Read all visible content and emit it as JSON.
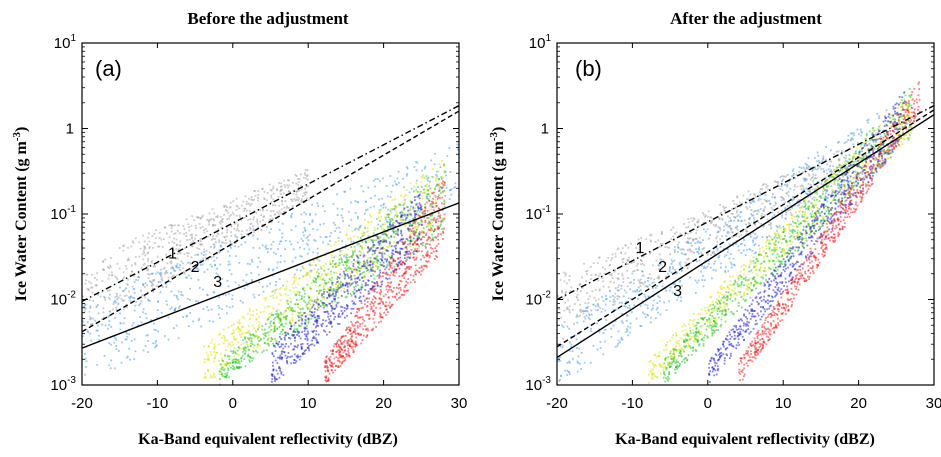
{
  "chart_data": [
    {
      "type": "scatter",
      "panel_label": "(a)",
      "title": "Before the adjustment",
      "xlabel": "Ka-Band equivalent reflectivity (dBZ)",
      "ylabel_main": "Ice Water Content (g m",
      "ylabel_sup": "-3",
      "ylabel_end": ")",
      "xlim": [
        -20,
        30
      ],
      "ylim": [
        0.001,
        10
      ],
      "yscale": "log",
      "xticks": [
        "-20",
        "-10",
        "0",
        "10",
        "20",
        "30"
      ],
      "yticks": [
        {
          "base": "10",
          "exp": "1",
          "value": 10
        },
        {
          "base": "1",
          "exp": "",
          "value": 1
        },
        {
          "base": "10",
          "exp": "-1",
          "value": 0.1
        },
        {
          "base": "10",
          "exp": "-2",
          "value": 0.01
        },
        {
          "base": "10",
          "exp": "-3",
          "value": 0.001
        }
      ],
      "lines": [
        {
          "label": "1",
          "style": "dashdot",
          "x": [
            -20,
            30
          ],
          "y": [
            0.0095,
            1.85
          ],
          "label_at": [
            -8,
            0.03
          ]
        },
        {
          "label": "2",
          "style": "dashed",
          "x": [
            -20,
            30
          ],
          "y": [
            0.0042,
            1.6
          ],
          "label_at": [
            -5,
            0.021
          ]
        },
        {
          "label": "3",
          "style": "solid",
          "x": [
            -20,
            30
          ],
          "y": [
            0.0027,
            0.135
          ],
          "label_at": [
            -2,
            0.014
          ]
        }
      ],
      "scatter_groups": [
        {
          "color": "#a0a0a0",
          "x_range": [
            -20,
            10
          ],
          "y_at_x_min": [
            0.004,
            0.03
          ],
          "y_at_x_max": [
            0.15,
            0.35
          ]
        },
        {
          "color": "#4a9ce8",
          "x_range": [
            -20,
            30
          ],
          "y_at_x_min": [
            0.001,
            0.01
          ],
          "y_at_x_max": [
            0.15,
            0.7
          ]
        },
        {
          "color": "#d8e000",
          "x_range": [
            -4,
            28
          ],
          "y_at_x_min": [
            0.001,
            0.003
          ],
          "y_at_x_max": [
            0.08,
            0.5
          ]
        },
        {
          "color": "#20c020",
          "x_range": [
            -2,
            28
          ],
          "y_at_x_min": [
            0.001,
            0.002
          ],
          "y_at_x_max": [
            0.06,
            0.4
          ]
        },
        {
          "color": "#2020c8",
          "x_range": [
            5,
            25
          ],
          "y_at_x_min": [
            0.001,
            0.003
          ],
          "y_at_x_max": [
            0.04,
            0.2
          ]
        },
        {
          "color": "#e82020",
          "x_range": [
            12,
            28
          ],
          "y_at_x_min": [
            0.001,
            0.002
          ],
          "y_at_x_max": [
            0.04,
            0.3
          ]
        }
      ]
    },
    {
      "type": "scatter",
      "panel_label": "(b)",
      "title": "After the adjustment",
      "xlabel": "Ka-Band equivalent reflectivity (dBZ)",
      "ylabel_main": "Ice Water Content (g m",
      "ylabel_sup": "-3",
      "ylabel_end": ")",
      "xlim": [
        -20,
        30
      ],
      "ylim": [
        0.001,
        10
      ],
      "yscale": "log",
      "xticks": [
        "-20",
        "-10",
        "0",
        "10",
        "20",
        "30"
      ],
      "yticks": [
        {
          "base": "10",
          "exp": "1",
          "value": 10
        },
        {
          "base": "1",
          "exp": "",
          "value": 1
        },
        {
          "base": "10",
          "exp": "-1",
          "value": 0.1
        },
        {
          "base": "10",
          "exp": "-2",
          "value": 0.01
        },
        {
          "base": "10",
          "exp": "-3",
          "value": 0.001
        }
      ],
      "lines": [
        {
          "label": "1",
          "style": "dashdot",
          "x": [
            -20,
            30
          ],
          "y": [
            0.01,
            1.85
          ],
          "label_at": [
            -9,
            0.035
          ]
        },
        {
          "label": "2",
          "style": "dashed",
          "x": [
            -20,
            30
          ],
          "y": [
            0.0028,
            1.65
          ],
          "label_at": [
            -6,
            0.021
          ]
        },
        {
          "label": "3",
          "style": "solid",
          "x": [
            -20,
            30
          ],
          "y": [
            0.0021,
            1.45
          ],
          "label_at": [
            -4,
            0.011
          ]
        }
      ],
      "scatter_groups": [
        {
          "color": "#a0a0a0",
          "x_range": [
            -20,
            18
          ],
          "y_at_x_min": [
            0.004,
            0.02
          ],
          "y_at_x_max": [
            0.2,
            0.6
          ]
        },
        {
          "color": "#4a9ce8",
          "x_range": [
            -20,
            24
          ],
          "y_at_x_min": [
            0.001,
            0.005
          ],
          "y_at_x_max": [
            0.4,
            2
          ]
        },
        {
          "color": "#d8e000",
          "x_range": [
            -8,
            27
          ],
          "y_at_x_min": [
            0.001,
            0.002
          ],
          "y_at_x_max": [
            0.8,
            3
          ]
        },
        {
          "color": "#20c020",
          "x_range": [
            -6,
            27
          ],
          "y_at_x_min": [
            0.001,
            0.002
          ],
          "y_at_x_max": [
            0.8,
            3.5
          ]
        },
        {
          "color": "#2020c8",
          "x_range": [
            0,
            26
          ],
          "y_at_x_min": [
            0.001,
            0.002
          ],
          "y_at_x_max": [
            0.8,
            3
          ]
        },
        {
          "color": "#e82020",
          "x_range": [
            4,
            28
          ],
          "y_at_x_min": [
            0.001,
            0.002
          ],
          "y_at_x_max": [
            1.5,
            4
          ]
        }
      ]
    }
  ]
}
